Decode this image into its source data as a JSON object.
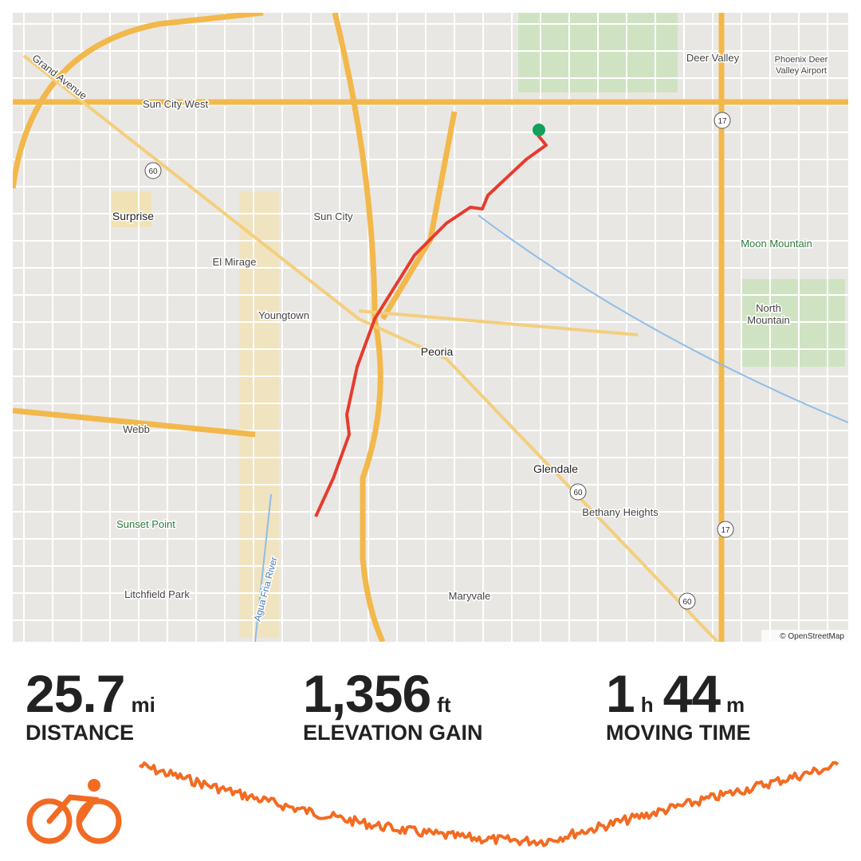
{
  "map": {
    "labels": [
      "Grand Avenue",
      "Sun City West",
      "Deer Valley",
      "Phoenix Deer",
      "Valley Airport",
      "Surprise",
      "Sun City",
      "El Mirage",
      "Moon Mountain",
      "Youngtown",
      "North",
      "Mountain",
      "Peoria",
      "Webb",
      "Glendale",
      "Bethany Heights",
      "Sunset Point",
      "Agua Fria River",
      "Litchfield Park",
      "Maryvale"
    ],
    "shields": [
      "60",
      "17",
      "60",
      "17",
      "60"
    ],
    "attribution": "© OpenStreetMap"
  },
  "stats": [
    {
      "value": "25.7",
      "unit": "mi",
      "label": "DISTANCE"
    },
    {
      "value": "1,356",
      "unit": "ft",
      "label": "ELEVATION GAIN"
    },
    {
      "value": "1",
      "unit": "h",
      "value2": "44",
      "unit2": "m",
      "label": "MOVING TIME"
    }
  ]
}
